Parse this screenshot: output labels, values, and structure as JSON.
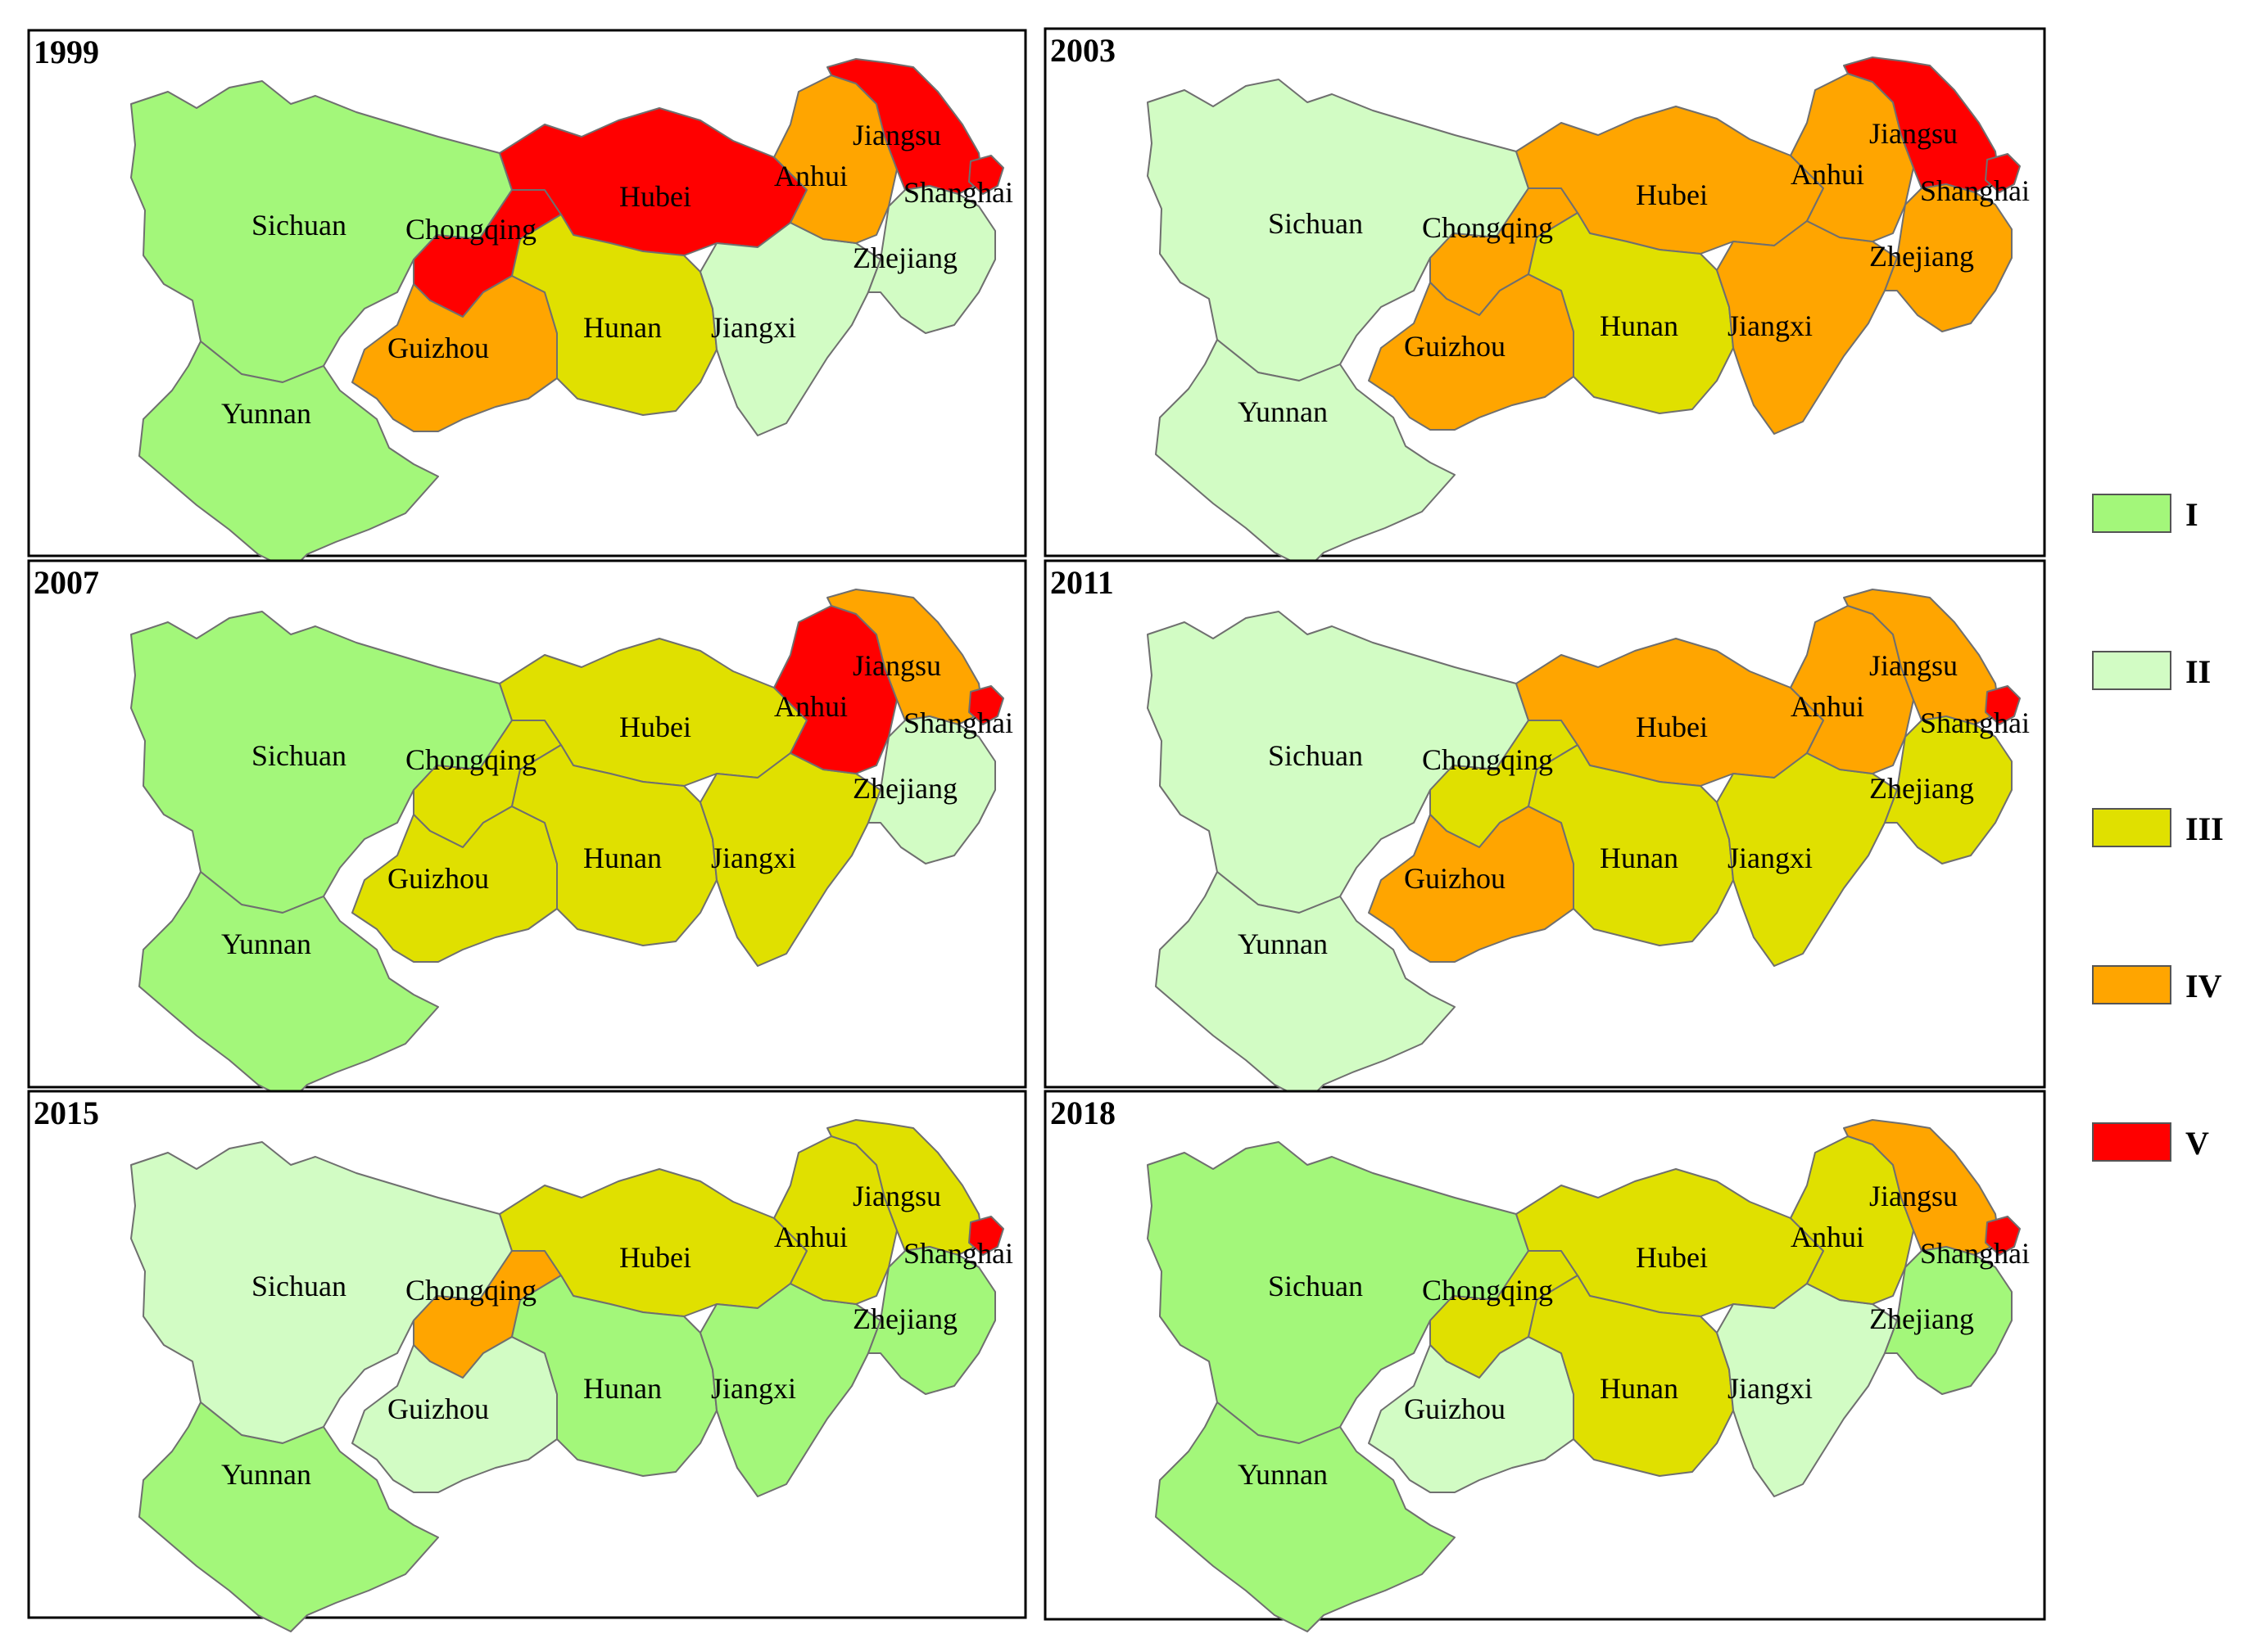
{
  "colors": {
    "I": "#a3f77a",
    "II": "#d2fcc4",
    "III": "#e0e000",
    "IV": "#ffa500",
    "V": "#ff0000"
  },
  "legend": [
    {
      "class": "I",
      "label": "I"
    },
    {
      "class": "II",
      "label": "II"
    },
    {
      "class": "III",
      "label": "III"
    },
    {
      "class": "IV",
      "label": "IV"
    },
    {
      "class": "V",
      "label": "V"
    }
  ],
  "province_names": {
    "sichuan": "Sichuan",
    "yunnan": "Yunnan",
    "chongqing": "Chongqing",
    "guizhou": "Guizhou",
    "hubei": "Hubei",
    "hunan": "Hunan",
    "jiangxi": "Jiangxi",
    "anhui": "Anhui",
    "jiangsu": "Jiangsu",
    "zhejiang": "Zhejiang",
    "shanghai": "Shanghai"
  },
  "panels": [
    {
      "year": "1999",
      "classes": {
        "sichuan": "I",
        "yunnan": "I",
        "chongqing": "V",
        "guizhou": "IV",
        "hubei": "V",
        "hunan": "III",
        "jiangxi": "II",
        "anhui": "IV",
        "jiangsu": "V",
        "zhejiang": "II",
        "shanghai": "V"
      }
    },
    {
      "year": "2003",
      "classes": {
        "sichuan": "II",
        "yunnan": "II",
        "chongqing": "IV",
        "guizhou": "IV",
        "hubei": "IV",
        "hunan": "III",
        "jiangxi": "IV",
        "anhui": "IV",
        "jiangsu": "V",
        "zhejiang": "IV",
        "shanghai": "V"
      }
    },
    {
      "year": "2007",
      "classes": {
        "sichuan": "I",
        "yunnan": "I",
        "chongqing": "III",
        "guizhou": "III",
        "hubei": "III",
        "hunan": "III",
        "jiangxi": "III",
        "anhui": "V",
        "jiangsu": "IV",
        "zhejiang": "II",
        "shanghai": "V"
      }
    },
    {
      "year": "2011",
      "classes": {
        "sichuan": "II",
        "yunnan": "II",
        "chongqing": "III",
        "guizhou": "IV",
        "hubei": "IV",
        "hunan": "III",
        "jiangxi": "III",
        "anhui": "IV",
        "jiangsu": "IV",
        "zhejiang": "III",
        "shanghai": "V"
      }
    },
    {
      "year": "2015",
      "classes": {
        "sichuan": "II",
        "yunnan": "I",
        "chongqing": "IV",
        "guizhou": "II",
        "hubei": "III",
        "hunan": "I",
        "jiangxi": "I",
        "anhui": "III",
        "jiangsu": "III",
        "zhejiang": "I",
        "shanghai": "V"
      }
    },
    {
      "year": "2018",
      "classes": {
        "sichuan": "I",
        "yunnan": "I",
        "chongqing": "III",
        "guizhou": "II",
        "hubei": "III",
        "hunan": "III",
        "jiangxi": "II",
        "anhui": "III",
        "jiangsu": "IV",
        "zhejiang": "I",
        "shanghai": "V"
      }
    }
  ]
}
